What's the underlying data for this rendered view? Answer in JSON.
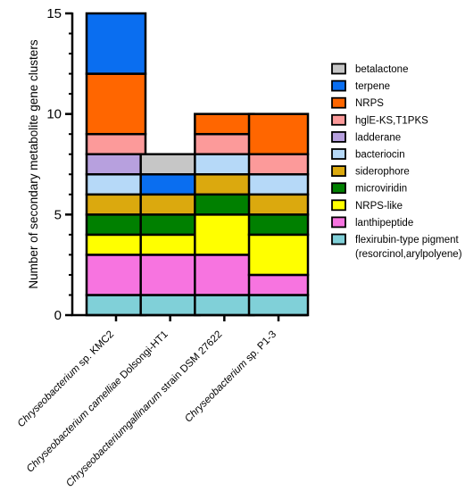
{
  "chart_data": {
    "type": "bar",
    "stacked": true,
    "ylabel": "Number of secondary metabolite gene clusters",
    "xlabel": "",
    "ylim": [
      0,
      15
    ],
    "yticks": [
      0,
      5,
      10,
      15
    ],
    "grid": false,
    "legend_position": "right",
    "categories": [
      {
        "italic": "Chryseobacterium",
        "plain": " sp. KMC2"
      },
      {
        "italic": "Chryseobacterium camelliae",
        "plain": " Dolsongi-HT1"
      },
      {
        "italic": "Chryseobacteriumgallinarum",
        "plain": " strain DSM 27622"
      },
      {
        "italic": "Chryseobacterium",
        "plain": " sp. P1-3"
      }
    ],
    "series": [
      {
        "name": "flexirubin-type pigment",
        "name2": "(resorcinol,arylpolyene)",
        "color": "#80d0d8",
        "values": [
          1,
          1,
          1,
          1
        ]
      },
      {
        "name": "lanthipeptide",
        "color": "#f774e0",
        "values": [
          2,
          2,
          2,
          1
        ]
      },
      {
        "name": "NRPS-like",
        "color": "#ffff00",
        "values": [
          1,
          1,
          2,
          2
        ]
      },
      {
        "name": "microviridin",
        "color": "#008000",
        "values": [
          1,
          1,
          1,
          1
        ]
      },
      {
        "name": "siderophore",
        "color": "#dba90e",
        "values": [
          1,
          1,
          1,
          1
        ]
      },
      {
        "name": "bacteriocin",
        "color": "#b6d9f8",
        "values": [
          1,
          0,
          1,
          1
        ]
      },
      {
        "name": "ladderane",
        "color": "#b7a0de",
        "values": [
          1,
          0,
          0,
          0
        ]
      },
      {
        "name": "hglE-KS,T1PKS",
        "color": "#fc9a9a",
        "values": [
          1,
          0,
          1,
          1
        ]
      },
      {
        "name": "NRPS",
        "color": "#ff6600",
        "values": [
          3,
          0,
          1,
          2
        ]
      },
      {
        "name": "terpene",
        "color": "#0a6ef0",
        "values": [
          3,
          1,
          0,
          0
        ]
      },
      {
        "name": "betalactone",
        "color": "#c6c6c6",
        "values": [
          0,
          1,
          0,
          0
        ]
      }
    ],
    "legend_order": [
      "betalactone",
      "terpene",
      "NRPS",
      "hglE-KS,T1PKS",
      "ladderane",
      "bacteriocin",
      "siderophore",
      "microviridin",
      "NRPS-like",
      "lanthipeptide",
      "flexirubin-type pigment"
    ]
  }
}
